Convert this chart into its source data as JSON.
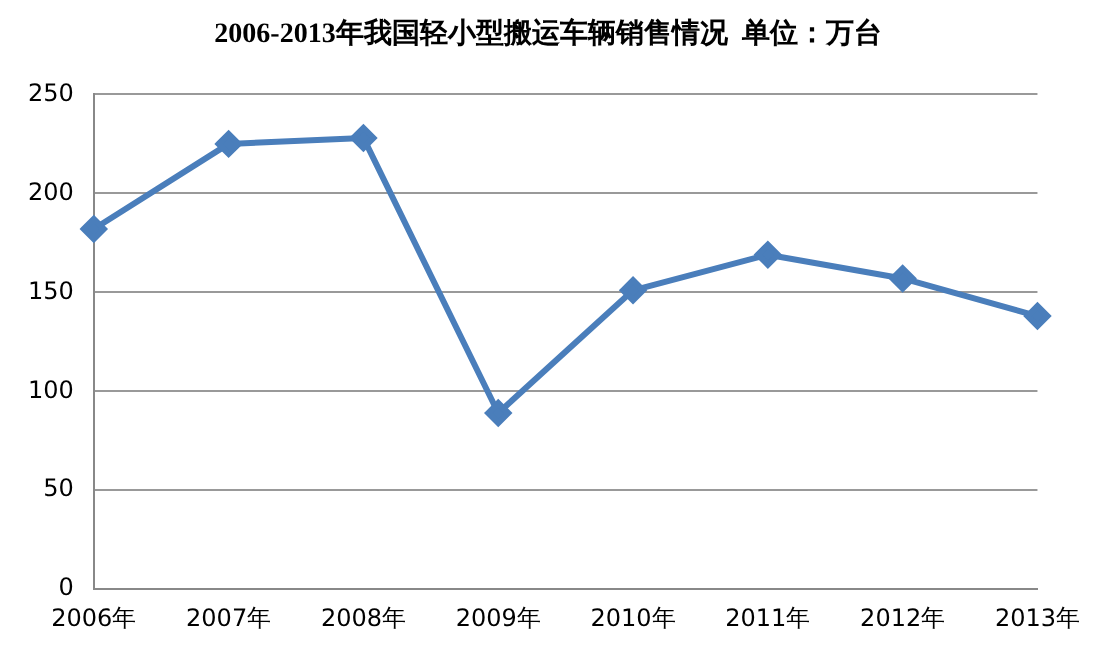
{
  "chart_data": {
    "type": "line",
    "title": "2006-2013年我国轻小型搬运车辆销售情况  单位：万台",
    "categories": [
      "2006年",
      "2007年",
      "2008年",
      "2009年",
      "2010年",
      "2011年",
      "2012年",
      "2013年"
    ],
    "series": [
      {
        "color": "#4a7ebb",
        "values": [
          182,
          225,
          228,
          89,
          151,
          169,
          157,
          138
        ]
      }
    ],
    "ylim": [
      0,
      250
    ],
    "yticks": [
      0,
      50,
      100,
      150,
      200,
      250
    ],
    "grid": "y",
    "marker": "diamond",
    "line_style": "solid"
  }
}
